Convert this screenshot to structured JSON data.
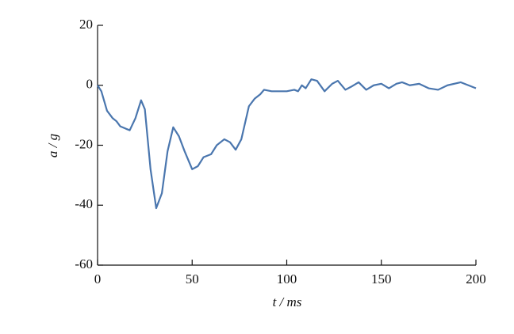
{
  "chart_data": {
    "type": "line",
    "xlabel": "t / ms",
    "ylabel": "a / g",
    "xlim": [
      0,
      200
    ],
    "xticks": [
      0,
      50,
      100,
      150,
      200
    ],
    "ylim": [
      -60,
      20
    ],
    "yticks": [
      -60,
      -40,
      -20,
      0,
      20
    ],
    "grid": false,
    "x": [
      0,
      2,
      5,
      8,
      10,
      12,
      15,
      17,
      20,
      23,
      25,
      28,
      31,
      34,
      37,
      40,
      43,
      46,
      50,
      53,
      56,
      60,
      63,
      67,
      70,
      73,
      76,
      80,
      83,
      86,
      88,
      92,
      100,
      104,
      106,
      108,
      110,
      113,
      116,
      120,
      124,
      127,
      131,
      134,
      138,
      142,
      146,
      150,
      154,
      158,
      161,
      165,
      170,
      175,
      180,
      185,
      192,
      196,
      200
    ],
    "series": [
      {
        "color": "#4a76ae",
        "values": [
          0,
          -2,
          -8.5,
          -11,
          -12,
          -13.7,
          -14.5,
          -15,
          -11,
          -5,
          -8,
          -28,
          -41,
          -36,
          -22,
          -14,
          -17,
          -22,
          -28,
          -27,
          -24,
          -23,
          -20,
          -18,
          -19,
          -21.5,
          -18,
          -7,
          -4.5,
          -3,
          -1.5,
          -2,
          -2,
          -1.5,
          -2,
          0,
          -1,
          2,
          1.5,
          -2,
          0.5,
          1.5,
          -1.5,
          -0.5,
          1,
          -1.5,
          0,
          0.5,
          -1,
          0.5,
          1,
          0,
          0.5,
          -1,
          -1.5,
          0,
          1,
          0,
          -1
        ]
      }
    ]
  }
}
